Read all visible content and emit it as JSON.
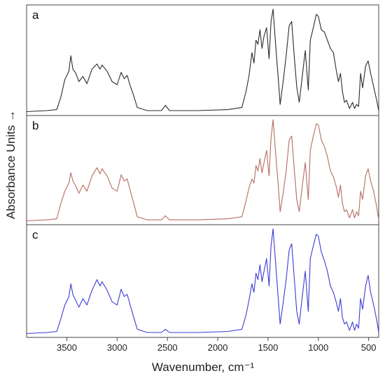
{
  "chart_data": {
    "type": "line",
    "title": "",
    "xlabel": "Wavenumber, cm⁻¹",
    "ylabel": "Absorbance Units →",
    "xlim": [
      3900,
      400
    ],
    "x_reversed": true,
    "x_ticks": [
      3500,
      3000,
      2500,
      2000,
      1500,
      1000,
      500
    ],
    "x_tick_labels": [
      "3500",
      "3000",
      "2500",
      "2000",
      "1500",
      "1000",
      "500"
    ],
    "y_ticks_shown": false,
    "grid": false,
    "stacked_panels": true,
    "panels": [
      {
        "label": "a",
        "color": "#2b2b2b",
        "series": [
          {
            "x": 3900,
            "y": 0.01
          },
          {
            "x": 3700,
            "y": 0.02
          },
          {
            "x": 3600,
            "y": 0.03
          },
          {
            "x": 3560,
            "y": 0.15
          },
          {
            "x": 3520,
            "y": 0.32
          },
          {
            "x": 3480,
            "y": 0.4
          },
          {
            "x": 3460,
            "y": 0.55
          },
          {
            "x": 3440,
            "y": 0.42
          },
          {
            "x": 3410,
            "y": 0.38
          },
          {
            "x": 3380,
            "y": 0.3
          },
          {
            "x": 3340,
            "y": 0.35
          },
          {
            "x": 3300,
            "y": 0.28
          },
          {
            "x": 3250,
            "y": 0.42
          },
          {
            "x": 3200,
            "y": 0.47
          },
          {
            "x": 3170,
            "y": 0.42
          },
          {
            "x": 3150,
            "y": 0.46
          },
          {
            "x": 3100,
            "y": 0.4
          },
          {
            "x": 3050,
            "y": 0.3
          },
          {
            "x": 3000,
            "y": 0.27
          },
          {
            "x": 2960,
            "y": 0.39
          },
          {
            "x": 2930,
            "y": 0.33
          },
          {
            "x": 2900,
            "y": 0.36
          },
          {
            "x": 2870,
            "y": 0.26
          },
          {
            "x": 2840,
            "y": 0.18
          },
          {
            "x": 2800,
            "y": 0.05
          },
          {
            "x": 2700,
            "y": 0.02
          },
          {
            "x": 2560,
            "y": 0.02
          },
          {
            "x": 2520,
            "y": 0.07
          },
          {
            "x": 2480,
            "y": 0.02
          },
          {
            "x": 2200,
            "y": 0.02
          },
          {
            "x": 1900,
            "y": 0.03
          },
          {
            "x": 1760,
            "y": 0.05
          },
          {
            "x": 1720,
            "y": 0.2
          },
          {
            "x": 1690,
            "y": 0.35
          },
          {
            "x": 1660,
            "y": 0.58
          },
          {
            "x": 1640,
            "y": 0.48
          },
          {
            "x": 1620,
            "y": 0.7
          },
          {
            "x": 1600,
            "y": 0.66
          },
          {
            "x": 1580,
            "y": 0.8
          },
          {
            "x": 1560,
            "y": 0.62
          },
          {
            "x": 1540,
            "y": 0.74
          },
          {
            "x": 1515,
            "y": 0.82
          },
          {
            "x": 1490,
            "y": 0.52
          },
          {
            "x": 1470,
            "y": 0.88
          },
          {
            "x": 1450,
            "y": 1.0
          },
          {
            "x": 1420,
            "y": 0.6
          },
          {
            "x": 1400,
            "y": 0.35
          },
          {
            "x": 1380,
            "y": 0.08
          },
          {
            "x": 1350,
            "y": 0.3
          },
          {
            "x": 1320,
            "y": 0.55
          },
          {
            "x": 1290,
            "y": 0.84
          },
          {
            "x": 1265,
            "y": 0.88
          },
          {
            "x": 1240,
            "y": 0.55
          },
          {
            "x": 1215,
            "y": 0.25
          },
          {
            "x": 1190,
            "y": 0.1
          },
          {
            "x": 1160,
            "y": 0.35
          },
          {
            "x": 1130,
            "y": 0.6
          },
          {
            "x": 1100,
            "y": 0.22
          },
          {
            "x": 1080,
            "y": 0.7
          },
          {
            "x": 1050,
            "y": 0.82
          },
          {
            "x": 1020,
            "y": 0.95
          },
          {
            "x": 1000,
            "y": 0.93
          },
          {
            "x": 970,
            "y": 0.8
          },
          {
            "x": 940,
            "y": 0.78
          },
          {
            "x": 910,
            "y": 0.7
          },
          {
            "x": 880,
            "y": 0.62
          },
          {
            "x": 850,
            "y": 0.58
          },
          {
            "x": 820,
            "y": 0.4
          },
          {
            "x": 800,
            "y": 0.3
          },
          {
            "x": 780,
            "y": 0.38
          },
          {
            "x": 760,
            "y": 0.2
          },
          {
            "x": 740,
            "y": 0.1
          },
          {
            "x": 720,
            "y": 0.12
          },
          {
            "x": 690,
            "y": 0.04
          },
          {
            "x": 660,
            "y": 0.1
          },
          {
            "x": 640,
            "y": 0.04
          },
          {
            "x": 620,
            "y": 0.08
          },
          {
            "x": 600,
            "y": 0.06
          },
          {
            "x": 580,
            "y": 0.38
          },
          {
            "x": 560,
            "y": 0.24
          },
          {
            "x": 530,
            "y": 0.45
          },
          {
            "x": 505,
            "y": 0.5
          },
          {
            "x": 480,
            "y": 0.38
          },
          {
            "x": 450,
            "y": 0.25
          },
          {
            "x": 420,
            "y": 0.12
          },
          {
            "x": 400,
            "y": 0.02
          }
        ]
      },
      {
        "label": "b",
        "color": "#b56d5e",
        "series": [
          {
            "x": 3900,
            "y": 0.01
          },
          {
            "x": 3700,
            "y": 0.02
          },
          {
            "x": 3600,
            "y": 0.03
          },
          {
            "x": 3560,
            "y": 0.18
          },
          {
            "x": 3520,
            "y": 0.3
          },
          {
            "x": 3480,
            "y": 0.38
          },
          {
            "x": 3460,
            "y": 0.48
          },
          {
            "x": 3440,
            "y": 0.4
          },
          {
            "x": 3410,
            "y": 0.35
          },
          {
            "x": 3380,
            "y": 0.28
          },
          {
            "x": 3340,
            "y": 0.36
          },
          {
            "x": 3300,
            "y": 0.3
          },
          {
            "x": 3250,
            "y": 0.45
          },
          {
            "x": 3200,
            "y": 0.53
          },
          {
            "x": 3170,
            "y": 0.47
          },
          {
            "x": 3150,
            "y": 0.52
          },
          {
            "x": 3100,
            "y": 0.45
          },
          {
            "x": 3050,
            "y": 0.33
          },
          {
            "x": 3000,
            "y": 0.3
          },
          {
            "x": 2960,
            "y": 0.46
          },
          {
            "x": 2930,
            "y": 0.4
          },
          {
            "x": 2900,
            "y": 0.42
          },
          {
            "x": 2870,
            "y": 0.31
          },
          {
            "x": 2840,
            "y": 0.2
          },
          {
            "x": 2800,
            "y": 0.05
          },
          {
            "x": 2700,
            "y": 0.02
          },
          {
            "x": 2560,
            "y": 0.02
          },
          {
            "x": 2520,
            "y": 0.06
          },
          {
            "x": 2480,
            "y": 0.02
          },
          {
            "x": 2200,
            "y": 0.02
          },
          {
            "x": 1900,
            "y": 0.03
          },
          {
            "x": 1760,
            "y": 0.05
          },
          {
            "x": 1720,
            "y": 0.2
          },
          {
            "x": 1690,
            "y": 0.33
          },
          {
            "x": 1660,
            "y": 0.42
          },
          {
            "x": 1640,
            "y": 0.38
          },
          {
            "x": 1620,
            "y": 0.55
          },
          {
            "x": 1600,
            "y": 0.5
          },
          {
            "x": 1580,
            "y": 0.62
          },
          {
            "x": 1560,
            "y": 0.48
          },
          {
            "x": 1540,
            "y": 0.58
          },
          {
            "x": 1515,
            "y": 0.7
          },
          {
            "x": 1490,
            "y": 0.45
          },
          {
            "x": 1470,
            "y": 0.82
          },
          {
            "x": 1450,
            "y": 1.0
          },
          {
            "x": 1420,
            "y": 0.62
          },
          {
            "x": 1400,
            "y": 0.38
          },
          {
            "x": 1380,
            "y": 0.1
          },
          {
            "x": 1350,
            "y": 0.28
          },
          {
            "x": 1320,
            "y": 0.5
          },
          {
            "x": 1290,
            "y": 0.8
          },
          {
            "x": 1265,
            "y": 0.84
          },
          {
            "x": 1240,
            "y": 0.52
          },
          {
            "x": 1215,
            "y": 0.22
          },
          {
            "x": 1190,
            "y": 0.1
          },
          {
            "x": 1160,
            "y": 0.35
          },
          {
            "x": 1130,
            "y": 0.58
          },
          {
            "x": 1100,
            "y": 0.22
          },
          {
            "x": 1080,
            "y": 0.7
          },
          {
            "x": 1050,
            "y": 0.84
          },
          {
            "x": 1020,
            "y": 0.96
          },
          {
            "x": 1000,
            "y": 0.95
          },
          {
            "x": 970,
            "y": 0.8
          },
          {
            "x": 940,
            "y": 0.74
          },
          {
            "x": 910,
            "y": 0.64
          },
          {
            "x": 880,
            "y": 0.5
          },
          {
            "x": 850,
            "y": 0.44
          },
          {
            "x": 820,
            "y": 0.34
          },
          {
            "x": 800,
            "y": 0.24
          },
          {
            "x": 780,
            "y": 0.36
          },
          {
            "x": 760,
            "y": 0.18
          },
          {
            "x": 740,
            "y": 0.1
          },
          {
            "x": 720,
            "y": 0.12
          },
          {
            "x": 690,
            "y": 0.04
          },
          {
            "x": 660,
            "y": 0.12
          },
          {
            "x": 640,
            "y": 0.04
          },
          {
            "x": 620,
            "y": 0.1
          },
          {
            "x": 600,
            "y": 0.06
          },
          {
            "x": 580,
            "y": 0.3
          },
          {
            "x": 560,
            "y": 0.22
          },
          {
            "x": 530,
            "y": 0.45
          },
          {
            "x": 505,
            "y": 0.52
          },
          {
            "x": 480,
            "y": 0.4
          },
          {
            "x": 450,
            "y": 0.3
          },
          {
            "x": 420,
            "y": 0.15
          },
          {
            "x": 400,
            "y": 0.02
          }
        ]
      },
      {
        "label": "c",
        "color": "#3b3bd6",
        "series": [
          {
            "x": 3900,
            "y": 0.01
          },
          {
            "x": 3700,
            "y": 0.02
          },
          {
            "x": 3600,
            "y": 0.03
          },
          {
            "x": 3560,
            "y": 0.15
          },
          {
            "x": 3520,
            "y": 0.28
          },
          {
            "x": 3480,
            "y": 0.36
          },
          {
            "x": 3460,
            "y": 0.48
          },
          {
            "x": 3440,
            "y": 0.38
          },
          {
            "x": 3410,
            "y": 0.32
          },
          {
            "x": 3380,
            "y": 0.26
          },
          {
            "x": 3340,
            "y": 0.34
          },
          {
            "x": 3300,
            "y": 0.28
          },
          {
            "x": 3250,
            "y": 0.42
          },
          {
            "x": 3200,
            "y": 0.52
          },
          {
            "x": 3170,
            "y": 0.46
          },
          {
            "x": 3150,
            "y": 0.5
          },
          {
            "x": 3100,
            "y": 0.42
          },
          {
            "x": 3050,
            "y": 0.31
          },
          {
            "x": 3000,
            "y": 0.28
          },
          {
            "x": 2960,
            "y": 0.43
          },
          {
            "x": 2930,
            "y": 0.36
          },
          {
            "x": 2900,
            "y": 0.38
          },
          {
            "x": 2870,
            "y": 0.28
          },
          {
            "x": 2840,
            "y": 0.18
          },
          {
            "x": 2800,
            "y": 0.05
          },
          {
            "x": 2700,
            "y": 0.02
          },
          {
            "x": 2560,
            "y": 0.02
          },
          {
            "x": 2520,
            "y": 0.05
          },
          {
            "x": 2480,
            "y": 0.02
          },
          {
            "x": 2200,
            "y": 0.02
          },
          {
            "x": 1900,
            "y": 0.03
          },
          {
            "x": 1760,
            "y": 0.05
          },
          {
            "x": 1720,
            "y": 0.18
          },
          {
            "x": 1690,
            "y": 0.32
          },
          {
            "x": 1660,
            "y": 0.48
          },
          {
            "x": 1640,
            "y": 0.4
          },
          {
            "x": 1620,
            "y": 0.58
          },
          {
            "x": 1600,
            "y": 0.52
          },
          {
            "x": 1580,
            "y": 0.66
          },
          {
            "x": 1560,
            "y": 0.5
          },
          {
            "x": 1540,
            "y": 0.6
          },
          {
            "x": 1515,
            "y": 0.72
          },
          {
            "x": 1490,
            "y": 0.46
          },
          {
            "x": 1470,
            "y": 0.84
          },
          {
            "x": 1450,
            "y": 1.0
          },
          {
            "x": 1420,
            "y": 0.62
          },
          {
            "x": 1400,
            "y": 0.36
          },
          {
            "x": 1380,
            "y": 0.1
          },
          {
            "x": 1350,
            "y": 0.3
          },
          {
            "x": 1320,
            "y": 0.52
          },
          {
            "x": 1290,
            "y": 0.8
          },
          {
            "x": 1265,
            "y": 0.86
          },
          {
            "x": 1240,
            "y": 0.54
          },
          {
            "x": 1215,
            "y": 0.22
          },
          {
            "x": 1190,
            "y": 0.1
          },
          {
            "x": 1160,
            "y": 0.36
          },
          {
            "x": 1130,
            "y": 0.6
          },
          {
            "x": 1100,
            "y": 0.22
          },
          {
            "x": 1080,
            "y": 0.72
          },
          {
            "x": 1050,
            "y": 0.84
          },
          {
            "x": 1020,
            "y": 0.95
          },
          {
            "x": 1000,
            "y": 0.93
          },
          {
            "x": 970,
            "y": 0.78
          },
          {
            "x": 940,
            "y": 0.7
          },
          {
            "x": 910,
            "y": 0.6
          },
          {
            "x": 880,
            "y": 0.46
          },
          {
            "x": 850,
            "y": 0.4
          },
          {
            "x": 820,
            "y": 0.3
          },
          {
            "x": 800,
            "y": 0.22
          },
          {
            "x": 780,
            "y": 0.34
          },
          {
            "x": 760,
            "y": 0.16
          },
          {
            "x": 740,
            "y": 0.1
          },
          {
            "x": 720,
            "y": 0.12
          },
          {
            "x": 690,
            "y": 0.04
          },
          {
            "x": 660,
            "y": 0.12
          },
          {
            "x": 640,
            "y": 0.04
          },
          {
            "x": 620,
            "y": 0.1
          },
          {
            "x": 600,
            "y": 0.06
          },
          {
            "x": 580,
            "y": 0.34
          },
          {
            "x": 560,
            "y": 0.24
          },
          {
            "x": 530,
            "y": 0.46
          },
          {
            "x": 505,
            "y": 0.56
          },
          {
            "x": 480,
            "y": 0.4
          },
          {
            "x": 450,
            "y": 0.28
          },
          {
            "x": 420,
            "y": 0.14
          },
          {
            "x": 400,
            "y": 0.02
          }
        ]
      }
    ]
  }
}
